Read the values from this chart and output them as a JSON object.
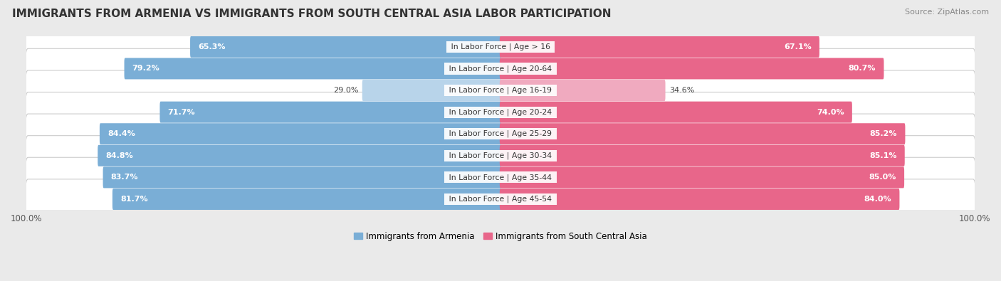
{
  "title": "IMMIGRANTS FROM ARMENIA VS IMMIGRANTS FROM SOUTH CENTRAL ASIA LABOR PARTICIPATION",
  "source": "Source: ZipAtlas.com",
  "categories": [
    "In Labor Force | Age > 16",
    "In Labor Force | Age 20-64",
    "In Labor Force | Age 16-19",
    "In Labor Force | Age 20-24",
    "In Labor Force | Age 25-29",
    "In Labor Force | Age 30-34",
    "In Labor Force | Age 35-44",
    "In Labor Force | Age 45-54"
  ],
  "armenia_values": [
    65.3,
    79.2,
    29.0,
    71.7,
    84.4,
    84.8,
    83.7,
    81.7
  ],
  "asia_values": [
    67.1,
    80.7,
    34.6,
    74.0,
    85.2,
    85.1,
    85.0,
    84.0
  ],
  "armenia_color": "#7aaed6",
  "armenia_color_light": "#b8d4ea",
  "asia_color": "#e8668a",
  "asia_color_light": "#f0aabf",
  "label_armenia": "Immigrants from Armenia",
  "label_asia": "Immigrants from South Central Asia",
  "max_val": 100.0,
  "bar_height": 0.62,
  "bg_color": "#eaeaea",
  "row_bg_even": "#f5f5f5",
  "row_bg_odd": "#ffffff",
  "title_fontsize": 11,
  "source_fontsize": 8,
  "axis_label_fontsize": 8.5,
  "bar_label_fontsize": 8,
  "category_fontsize": 7.8
}
